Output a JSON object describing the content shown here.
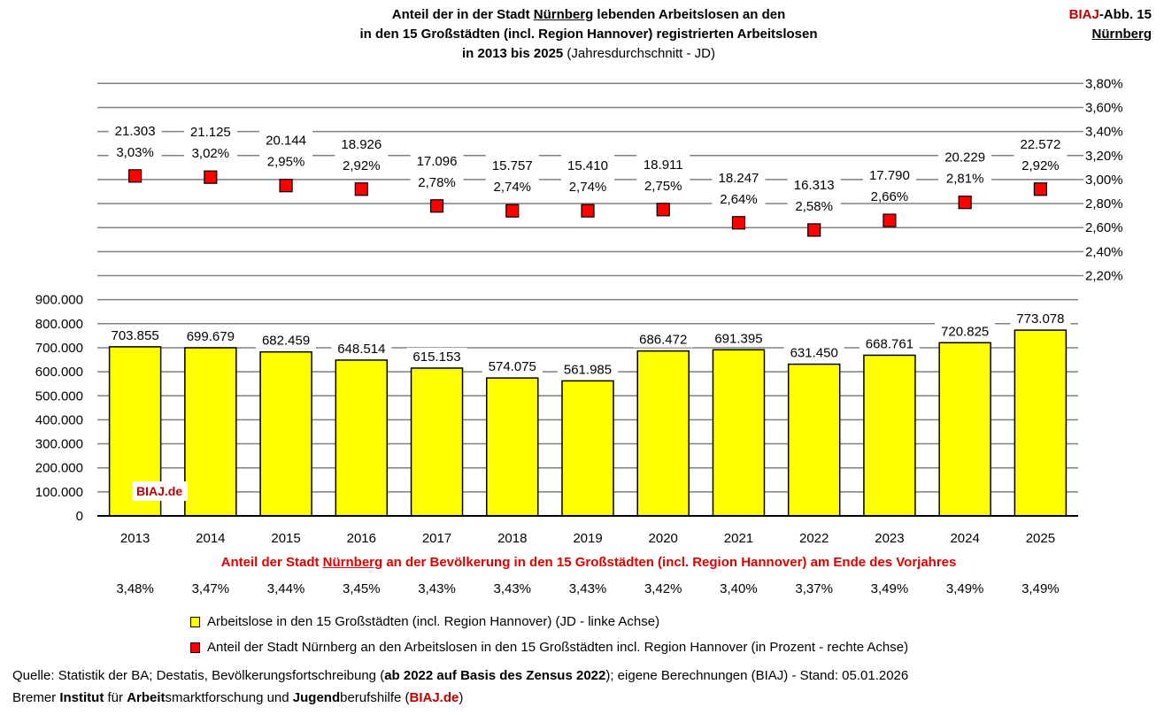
{
  "title": {
    "line1_a": "Anteil der in der Stadt ",
    "line1_city": "Nürnberg",
    "line1_b": " lebenden Arbeitslosen an den",
    "line2": "in den 15 Großstädten (incl. Region Hannover) registrierten Arbeitslosen",
    "line3_bold": "in 2013 bis 2025",
    "line3_normal": " (Jahresdurchschnitt - JD)"
  },
  "badge": {
    "biaj": "BIAJ",
    "abb": "-Abb. 15",
    "city": "Nürnberg"
  },
  "colors": {
    "bar": "#ffff00",
    "marker": "#ff0000",
    "accent_red": "#c00000",
    "grid": "#808080"
  },
  "chart_data": {
    "type": "bar+scatter",
    "categories": [
      "2013",
      "2014",
      "2015",
      "2016",
      "2017",
      "2018",
      "2019",
      "2020",
      "2021",
      "2022",
      "2023",
      "2024",
      "2025"
    ],
    "bars": {
      "name": "Arbeitslose in den 15 Großstädten (incl. Region Hannover) (JD - linke Achse)",
      "values": [
        703855,
        699679,
        682459,
        648514,
        615153,
        574075,
        561985,
        686472,
        691395,
        631450,
        668761,
        720825,
        773078
      ],
      "labels": [
        "703.855",
        "699.679",
        "682.459",
        "648.514",
        "615.153",
        "574.075",
        "561.985",
        "686.472",
        "691.395",
        "631.450",
        "668.761",
        "720.825",
        "773.078"
      ]
    },
    "markers": {
      "name": "Anteil der Stadt Nürnberg an den Arbeitslosen in den 15 Großstädten incl. Region Hannover (in Prozent - rechte Achse)",
      "values": [
        3.03,
        3.02,
        2.95,
        2.92,
        2.78,
        2.74,
        2.74,
        2.75,
        2.64,
        2.58,
        2.66,
        2.81,
        2.92
      ],
      "labels": [
        "3,03%",
        "3,02%",
        "2,95%",
        "2,92%",
        "2,78%",
        "2,74%",
        "2,74%",
        "2,75%",
        "2,64%",
        "2,58%",
        "2,66%",
        "2,81%",
        "2,92%"
      ],
      "counts": [
        "21.303",
        "21.125",
        "20.144",
        "18.926",
        "17.096",
        "15.757",
        "15.410",
        "18.911",
        "18.247",
        "16.313",
        "17.790",
        "20.229",
        "22.572"
      ]
    },
    "left_axis": {
      "range": [
        0,
        900000
      ],
      "ticks": [
        "0",
        "100.000",
        "200.000",
        "300.000",
        "400.000",
        "500.000",
        "600.000",
        "700.000",
        "800.000",
        "900.000"
      ]
    },
    "right_axis": {
      "range_shown": [
        2.2,
        3.8
      ],
      "ticks": [
        "2,20%",
        "2,40%",
        "2,60%",
        "2,80%",
        "3,00%",
        "3,20%",
        "3,40%",
        "3,60%",
        "3,80%"
      ]
    },
    "grid": true,
    "legend_position": "bottom"
  },
  "population": {
    "title_a": "Anteil der Stadt ",
    "title_city": "Nürnberg",
    "title_b": " an der Bevölkerung in den 15 Großstädten (incl. Region Hannover) am Ende des Vorjahres",
    "values": [
      "3,48%",
      "3,47%",
      "3,44%",
      "3,45%",
      "3,43%",
      "3,43%",
      "3,43%",
      "3,42%",
      "3,40%",
      "3,37%",
      "3,49%",
      "3,49%",
      "3,49%"
    ]
  },
  "legend": {
    "bars": "Arbeitslose in den 15 Großstädten (incl. Region Hannover) (JD - linke Achse)",
    "markers": "Anteil der Stadt Nürnberg an den Arbeitslosen in den 15 Großstädten incl. Region Hannover (in Prozent - rechte Achse)"
  },
  "watermark": "BIAJ.de",
  "source": {
    "a": "Quelle: Statistik der BA; Destatis, Bevölkerungsfortschreibung (",
    "b": "ab 2022 auf Basis des Zensus 2022",
    "c": "); eigene Berechnungen (BIAJ) - Stand: 05.01.2026"
  },
  "footer": {
    "p1": "Bremer ",
    "p2": "Institut",
    "p3": " für ",
    "p4": "Arbeit",
    "p5": "smarktforschung und ",
    "p6": "Jugend",
    "p7": "berufshilfe (",
    "p8": "BIAJ.de",
    "p9": ")"
  }
}
